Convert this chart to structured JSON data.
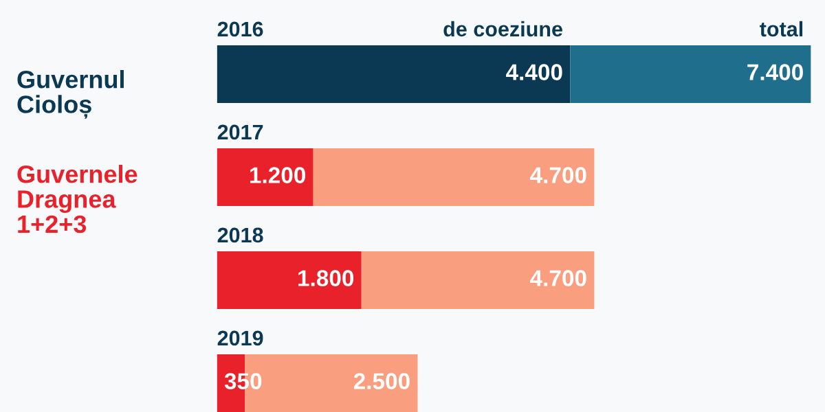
{
  "chart_data": {
    "type": "bar",
    "orientation": "horizontal",
    "stacked": true,
    "categories": [
      "2016",
      "2017",
      "2018",
      "2019"
    ],
    "series": [
      {
        "name": "de coeziune",
        "colors": [
          "#0b3954",
          "#e9212b",
          "#e9212b",
          "#e9212b"
        ],
        "values": [
          4400,
          1200,
          1800,
          350
        ],
        "value_labels": [
          "4.400",
          "1.200",
          "1.800",
          "350"
        ]
      },
      {
        "colors": [
          "#1f6e8c",
          "#f99f80",
          "#f99f80",
          "#f99f80"
        ],
        "values": [
          3000,
          3500,
          2900,
          2150
        ]
      }
    ],
    "totals": [
      "7.400",
      "4.700",
      "4.700",
      "2.500"
    ],
    "annotations": [
      "total",
      "Guvernul\nCioloș",
      "Guvernele\nDragnea\n1+2+3"
    ]
  }
}
